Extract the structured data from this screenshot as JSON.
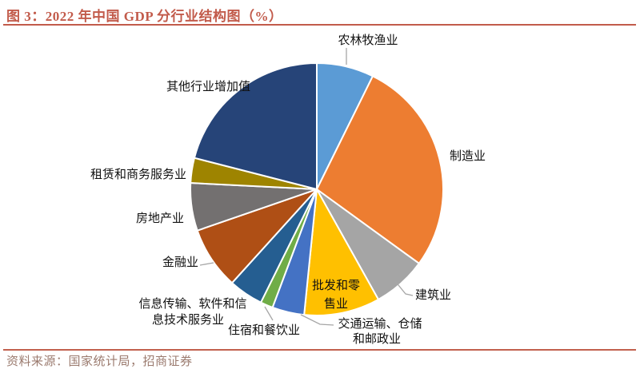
{
  "figure": {
    "title": "图 3：2022 年中国 GDP 分行业结构图（%）",
    "source_note": "资料来源：国家统计局，招商证券"
  },
  "colors": {
    "accent_red": "#C25B4B",
    "footer_rule": "#C2604E",
    "source_text": "#9B7B6F",
    "label_text": "#111111",
    "leader_line": "#A6A6A6",
    "slice_border": "#FFFFFF",
    "background": "#FFFFFF"
  },
  "chart_data": {
    "type": "pie",
    "title": "2022 年中国 GDP 分行业结构图（%）",
    "unit": "%",
    "start_angle_deg": 0,
    "direction": "clockwise",
    "legend": "none (direct category labels with leader lines)",
    "value_labels_printed": false,
    "slices": [
      {
        "label": "农林牧渔业",
        "value": 7.3,
        "color": "#5B9BD5"
      },
      {
        "label": "制造业",
        "value": 27.7,
        "color": "#ED7D31"
      },
      {
        "label": "建筑业",
        "value": 6.9,
        "color": "#A5A5A5"
      },
      {
        "label": "批发和零售业",
        "value": 9.7,
        "color": "#FFC000",
        "label_lines": [
          "批发和零",
          "售业"
        ]
      },
      {
        "label": "交通运输、仓储和邮政业",
        "value": 4.1,
        "color": "#4472C4",
        "label_lines": [
          "交通运输、仓储",
          "和邮政业"
        ]
      },
      {
        "label": "住宿和餐饮业",
        "value": 1.6,
        "color": "#70AD47"
      },
      {
        "label": "信息传输、软件和信息技术服务业",
        "value": 4.4,
        "color": "#255E91",
        "label_lines": [
          "信息传输、软件和信",
          "息技术服务业"
        ]
      },
      {
        "label": "金融业",
        "value": 8.0,
        "color": "#AF4F15"
      },
      {
        "label": "房地产业",
        "value": 6.1,
        "color": "#737070"
      },
      {
        "label": "租赁和商务服务业",
        "value": 3.2,
        "color": "#9E8400"
      },
      {
        "label": "其他行业增加值",
        "value": 21.0,
        "color": "#264478"
      }
    ]
  }
}
